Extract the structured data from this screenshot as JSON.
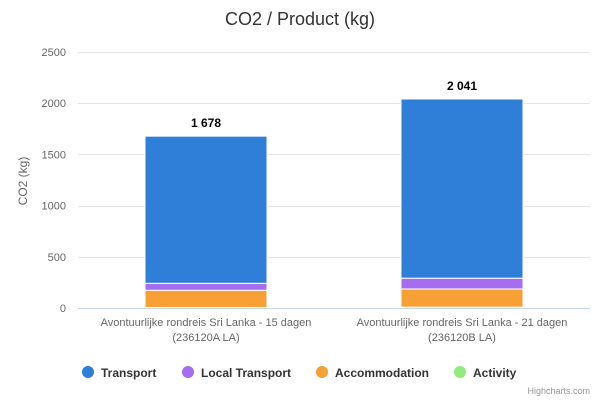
{
  "chart_data": {
    "type": "bar",
    "stacked": true,
    "title": "CO2 / Product (kg)",
    "ylabel": "CO2 (kg)",
    "xlabel": "",
    "ylim": [
      0,
      2500
    ],
    "yticks": [
      0,
      500,
      1000,
      1500,
      2000,
      2500
    ],
    "grid": true,
    "legend_position": "bottom",
    "categories": [
      [
        "Avontuurlijke rondreis Sri Lanka - 15 dagen",
        "(236120A LA)"
      ],
      [
        "Avontuurlijke rondreis Sri Lanka - 21 dagen",
        "(236120B LA)"
      ]
    ],
    "totals": [
      1678,
      2041
    ],
    "total_labels": [
      "1 678",
      "2 041"
    ],
    "series": [
      {
        "name": "Activity",
        "color": "#90ed7d",
        "values": [
          5,
          8
        ]
      },
      {
        "name": "Accommodation",
        "color": "#f7a035",
        "values": [
          168,
          178
        ]
      },
      {
        "name": "Local Transport",
        "color": "#a56df0",
        "values": [
          68,
          105
        ]
      },
      {
        "name": "Transport",
        "color": "#2f7ed8",
        "values": [
          1437,
          1750
        ]
      }
    ],
    "legend_order": [
      "Transport",
      "Local Transport",
      "Accommodation",
      "Activity"
    ]
  },
  "credits": "Highcharts.com"
}
